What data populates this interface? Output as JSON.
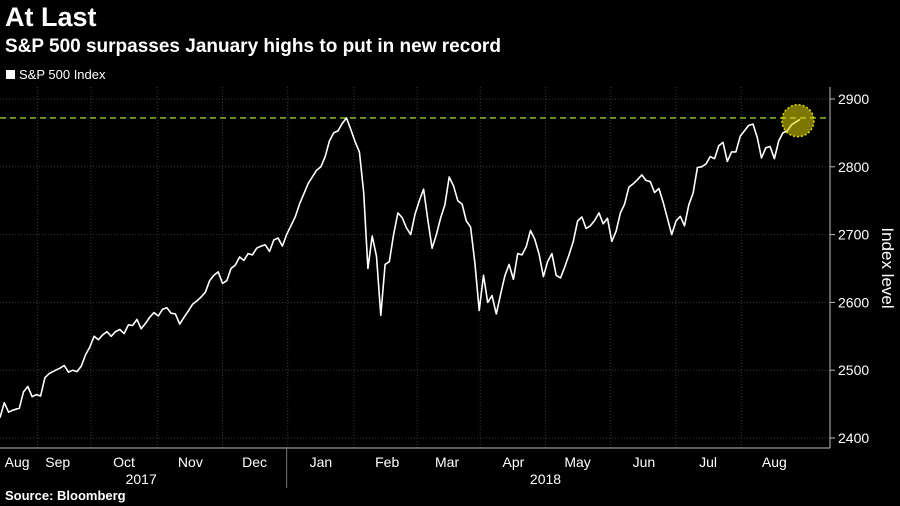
{
  "title": "At Last",
  "subtitle": "S&P 500 surpasses January highs to put in new record",
  "source": "Source: Bloomberg",
  "chart_data": {
    "type": "line",
    "legend": {
      "placement": "top-left"
    },
    "ylabel": "Index level",
    "ylim": [
      2400,
      2900
    ],
    "yticks": [
      2400,
      2500,
      2600,
      2700,
      2800,
      2900
    ],
    "xlim": [
      0,
      388
    ],
    "months": [
      {
        "label": "Aug",
        "d": 8
      },
      {
        "label": "Sep",
        "d": 27
      },
      {
        "label": "Oct",
        "d": 58
      },
      {
        "label": "Nov",
        "d": 89
      },
      {
        "label": "Dec",
        "d": 119
      },
      {
        "label": "Jan",
        "d": 150
      },
      {
        "label": "Feb",
        "d": 181
      },
      {
        "label": "Mar",
        "d": 209
      },
      {
        "label": "Apr",
        "d": 240
      },
      {
        "label": "May",
        "d": 270
      },
      {
        "label": "Jun",
        "d": 301
      },
      {
        "label": "Jul",
        "d": 331
      },
      {
        "label": "Aug",
        "d": 362
      }
    ],
    "years": [
      {
        "label": "2017",
        "d": 66
      },
      {
        "label": "2018",
        "d": 255
      }
    ],
    "year_divider_d": 134,
    "record_line": {
      "value": 2872,
      "color": "#9acd32"
    },
    "highlight": {
      "d": 373,
      "value": 2868,
      "color": "#e3d900"
    },
    "series": [
      {
        "name": "S&P 500 Index",
        "color": "#ffffff",
        "points": [
          [
            0,
            2430
          ],
          [
            2,
            2452
          ],
          [
            4,
            2438
          ],
          [
            6,
            2441
          ],
          [
            9,
            2444
          ],
          [
            11,
            2468
          ],
          [
            13,
            2476
          ],
          [
            15,
            2461
          ],
          [
            17,
            2464
          ],
          [
            19,
            2462
          ],
          [
            21,
            2489
          ],
          [
            23,
            2495
          ],
          [
            26,
            2500
          ],
          [
            28,
            2503
          ],
          [
            30,
            2507
          ],
          [
            32,
            2497
          ],
          [
            34,
            2500
          ],
          [
            36,
            2498
          ],
          [
            38,
            2506
          ],
          [
            40,
            2523
          ],
          [
            42,
            2534
          ],
          [
            44,
            2550
          ],
          [
            46,
            2545
          ],
          [
            48,
            2552
          ],
          [
            50,
            2557
          ],
          [
            52,
            2550
          ],
          [
            54,
            2557
          ],
          [
            56,
            2560
          ],
          [
            58,
            2554
          ],
          [
            60,
            2567
          ],
          [
            62,
            2566
          ],
          [
            64,
            2575
          ],
          [
            66,
            2561
          ],
          [
            68,
            2569
          ],
          [
            70,
            2578
          ],
          [
            72,
            2585
          ],
          [
            74,
            2580
          ],
          [
            76,
            2590
          ],
          [
            78,
            2592
          ],
          [
            80,
            2584
          ],
          [
            82,
            2583
          ],
          [
            84,
            2568
          ],
          [
            86,
            2578
          ],
          [
            88,
            2587
          ],
          [
            90,
            2597
          ],
          [
            92,
            2602
          ],
          [
            94,
            2608
          ],
          [
            96,
            2615
          ],
          [
            98,
            2632
          ],
          [
            100,
            2640
          ],
          [
            102,
            2645
          ],
          [
            104,
            2628
          ],
          [
            106,
            2632
          ],
          [
            108,
            2650
          ],
          [
            110,
            2655
          ],
          [
            112,
            2667
          ],
          [
            114,
            2662
          ],
          [
            116,
            2672
          ],
          [
            118,
            2670
          ],
          [
            120,
            2680
          ],
          [
            122,
            2683
          ],
          [
            124,
            2685
          ],
          [
            126,
            2675
          ],
          [
            128,
            2692
          ],
          [
            130,
            2695
          ],
          [
            132,
            2683
          ],
          [
            134,
            2700
          ],
          [
            136,
            2713
          ],
          [
            138,
            2726
          ],
          [
            140,
            2745
          ],
          [
            142,
            2760
          ],
          [
            144,
            2775
          ],
          [
            146,
            2785
          ],
          [
            148,
            2795
          ],
          [
            150,
            2800
          ],
          [
            152,
            2815
          ],
          [
            154,
            2838
          ],
          [
            156,
            2850
          ],
          [
            158,
            2853
          ],
          [
            160,
            2864
          ],
          [
            162,
            2872
          ],
          [
            164,
            2855
          ],
          [
            166,
            2837
          ],
          [
            168,
            2822
          ],
          [
            170,
            2762
          ],
          [
            172,
            2650
          ],
          [
            174,
            2698
          ],
          [
            176,
            2668
          ],
          [
            178,
            2581
          ],
          [
            180,
            2656
          ],
          [
            182,
            2660
          ],
          [
            184,
            2700
          ],
          [
            186,
            2732
          ],
          [
            188,
            2725
          ],
          [
            190,
            2710
          ],
          [
            192,
            2700
          ],
          [
            194,
            2730
          ],
          [
            196,
            2750
          ],
          [
            198,
            2767
          ],
          [
            200,
            2722
          ],
          [
            202,
            2680
          ],
          [
            204,
            2700
          ],
          [
            206,
            2725
          ],
          [
            208,
            2744
          ],
          [
            210,
            2785
          ],
          [
            212,
            2772
          ],
          [
            214,
            2750
          ],
          [
            216,
            2745
          ],
          [
            218,
            2720
          ],
          [
            220,
            2711
          ],
          [
            222,
            2658
          ],
          [
            224,
            2588
          ],
          [
            226,
            2640
          ],
          [
            228,
            2600
          ],
          [
            230,
            2610
          ],
          [
            232,
            2583
          ],
          [
            234,
            2612
          ],
          [
            236,
            2639
          ],
          [
            238,
            2656
          ],
          [
            240,
            2634
          ],
          [
            242,
            2672
          ],
          [
            244,
            2670
          ],
          [
            246,
            2682
          ],
          [
            248,
            2706
          ],
          [
            250,
            2693
          ],
          [
            252,
            2671
          ],
          [
            254,
            2638
          ],
          [
            256,
            2660
          ],
          [
            258,
            2672
          ],
          [
            260,
            2640
          ],
          [
            262,
            2636
          ],
          [
            264,
            2652
          ],
          [
            266,
            2670
          ],
          [
            268,
            2690
          ],
          [
            270,
            2720
          ],
          [
            272,
            2726
          ],
          [
            274,
            2709
          ],
          [
            276,
            2713
          ],
          [
            278,
            2721
          ],
          [
            280,
            2732
          ],
          [
            282,
            2716
          ],
          [
            284,
            2724
          ],
          [
            286,
            2690
          ],
          [
            288,
            2705
          ],
          [
            290,
            2732
          ],
          [
            292,
            2745
          ],
          [
            294,
            2770
          ],
          [
            296,
            2775
          ],
          [
            298,
            2781
          ],
          [
            300,
            2788
          ],
          [
            302,
            2780
          ],
          [
            304,
            2778
          ],
          [
            306,
            2762
          ],
          [
            308,
            2768
          ],
          [
            310,
            2748
          ],
          [
            312,
            2724
          ],
          [
            314,
            2700
          ],
          [
            316,
            2720
          ],
          [
            318,
            2727
          ],
          [
            320,
            2713
          ],
          [
            322,
            2744
          ],
          [
            324,
            2761
          ],
          [
            326,
            2799
          ],
          [
            328,
            2800
          ],
          [
            330,
            2804
          ],
          [
            332,
            2815
          ],
          [
            334,
            2812
          ],
          [
            336,
            2831
          ],
          [
            338,
            2836
          ],
          [
            340,
            2808
          ],
          [
            342,
            2822
          ],
          [
            344,
            2822
          ],
          [
            346,
            2845
          ],
          [
            348,
            2853
          ],
          [
            350,
            2861
          ],
          [
            352,
            2863
          ],
          [
            354,
            2843
          ],
          [
            356,
            2813
          ],
          [
            358,
            2828
          ],
          [
            360,
            2830
          ],
          [
            362,
            2812
          ],
          [
            364,
            2838
          ],
          [
            366,
            2850
          ],
          [
            368,
            2853
          ],
          [
            370,
            2862
          ],
          [
            372,
            2866
          ],
          [
            374,
            2870
          ]
        ]
      }
    ]
  }
}
